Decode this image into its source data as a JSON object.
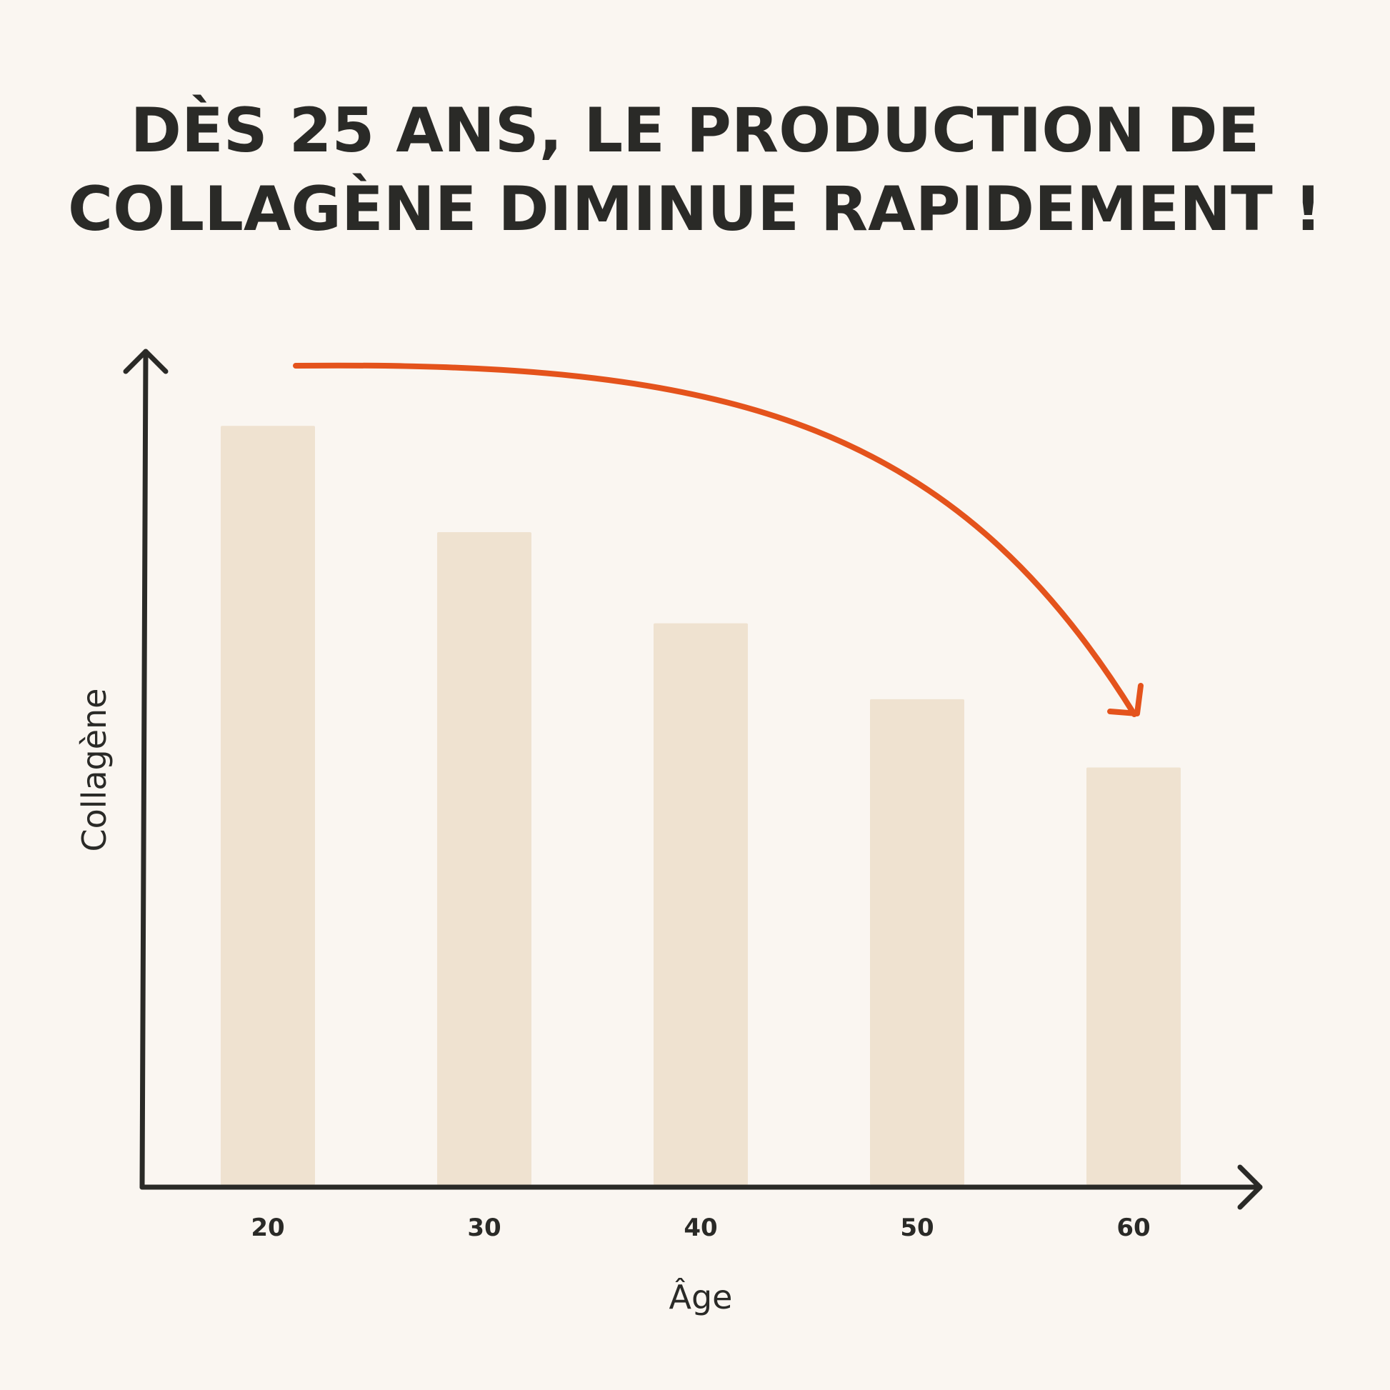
{
  "header": {
    "title_line1": "DÈS 25 ANS, LE PRODUCTION DE",
    "title_line2": "COLLAGÈNE DIMINUE RAPIDEMENT !"
  },
  "chart_data": {
    "type": "bar",
    "title": "DÈS 25 ANS, LE PRODUCTION DE COLLAGÈNE DIMINUE RAPIDEMENT !",
    "xlabel": "Âge",
    "ylabel": "Collagène",
    "categories": [
      "20",
      "30",
      "40",
      "50",
      "60"
    ],
    "values": [
      100,
      86,
      74,
      64,
      55
    ],
    "ylim": [
      0,
      110
    ],
    "grid": false,
    "legend": "none",
    "annotation": "downward trend arrow",
    "colors": {
      "bar": "#efe2d0",
      "axis": "#2a2a27",
      "arrow": "#e4531c",
      "background": "#faf6f1"
    }
  }
}
